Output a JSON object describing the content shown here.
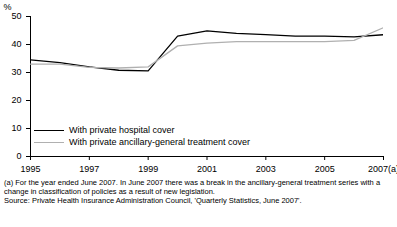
{
  "chart_data": {
    "type": "line",
    "y_label": "%",
    "x": [
      1995,
      1996,
      1997,
      1998,
      1999,
      2000,
      2001,
      2002,
      2003,
      2004,
      2005,
      2006,
      2007
    ],
    "series": [
      {
        "name": "With private hospital cover",
        "color": "#000000",
        "values": [
          34.5,
          33.5,
          32,
          30.8,
          30.6,
          43,
          44.9,
          44,
          43.5,
          43,
          43,
          42.7,
          43.5
        ]
      },
      {
        "name": "With private ancillary-general treatment cover",
        "color": "#b0b0b0",
        "values": [
          33,
          33,
          31.8,
          31.6,
          32,
          39.5,
          40.5,
          41,
          41,
          41,
          41,
          41.5,
          46
        ]
      }
    ],
    "xlim": [
      1995,
      2007
    ],
    "xticks": [
      1995,
      1997,
      1999,
      2001,
      2003,
      2005,
      {
        "value": 2007,
        "label": "2007(a)"
      }
    ],
    "ylim": [
      0,
      50
    ],
    "yticks": [
      0,
      10,
      20,
      30,
      40,
      50
    ],
    "grid": false,
    "legend": "bottom-left",
    "footnote": "(a) For the year ended June 2007. In June 2007 there was a break in the ancillary-general treatment series with a change in classification of policies as a result of new legislation.",
    "source": "Source: Private Health Insurance Administration Council, 'Quarterly Statistics, June 2007'."
  }
}
